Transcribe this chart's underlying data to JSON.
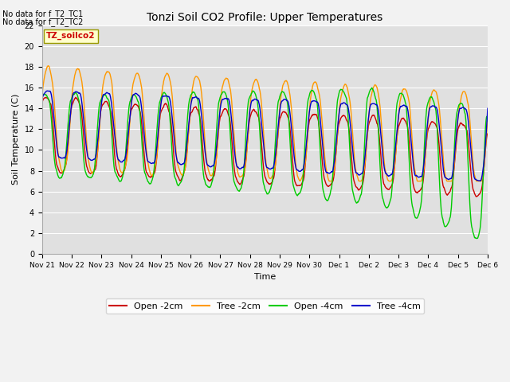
{
  "title": "Tonzi Soil CO2 Profile: Upper Temperatures",
  "xlabel": "Time",
  "ylabel": "Soil Temperature (C)",
  "ylim": [
    0,
    22
  ],
  "yticks": [
    0,
    2,
    4,
    6,
    8,
    10,
    12,
    14,
    16,
    18,
    20,
    22
  ],
  "colors": {
    "open_2cm": "#cc0000",
    "tree_2cm": "#ff9900",
    "open_4cm": "#00cc00",
    "tree_4cm": "#0000cc"
  },
  "legend_labels": [
    "Open -2cm",
    "Tree -2cm",
    "Open -4cm",
    "Tree -4cm"
  ],
  "annotation_text1": "No data for f_T2_TC1",
  "annotation_text2": "No data for f_T2_TC2",
  "box_label": "TZ_soilco2",
  "tick_labels": [
    "Nov 21",
    "Nov 22",
    "Nov 23",
    "Nov 24",
    "Nov 25",
    "Nov 26",
    "Nov 27",
    "Nov 28",
    "Nov 29",
    "Nov 30",
    "Dec 1",
    "Dec 2",
    "Dec 3",
    "Dec 4",
    "Dec 5",
    "Dec 6"
  ],
  "n_points": 1500
}
